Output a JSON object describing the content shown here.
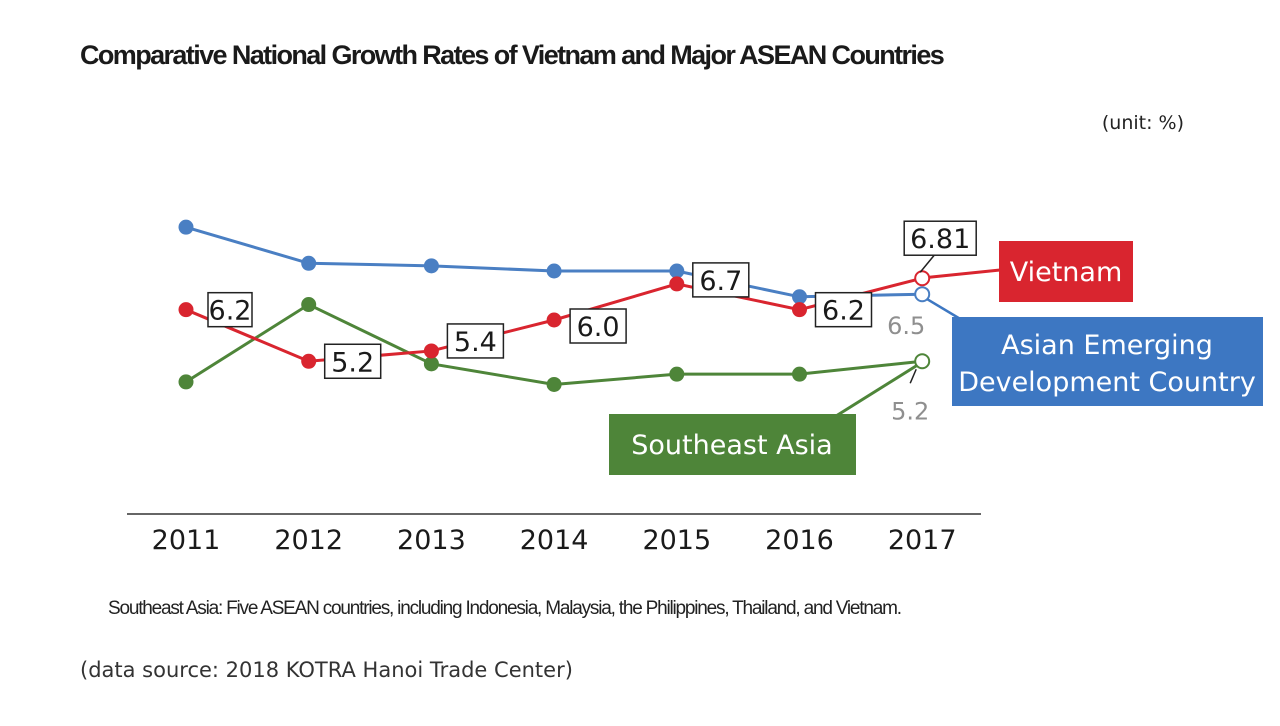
{
  "title": "Comparative National Growth Rates of Vietnam and Major ASEAN Countries",
  "unit": "(unit: %)",
  "note": "Southeast Asia: Five ASEAN countries, including Indonesia, Malaysia, the Philippines, Thailand, and Vietnam.",
  "source": "(data source: 2018 KOTRA Hanoi Trade Center)",
  "chart_data": {
    "type": "line",
    "title": "Comparative National Growth Rates of Vietnam and Major ASEAN Countries",
    "xlabel": "",
    "ylabel": "%",
    "ylim": [
      4.1,
      7.9
    ],
    "grid": false,
    "categories": [
      "2011",
      "2012",
      "2013",
      "2014",
      "2015",
      "2016",
      "2017"
    ],
    "series": [
      {
        "name": "Vietnam",
        "color": "#d9252f",
        "values": [
          6.2,
          5.2,
          5.4,
          6.0,
          6.7,
          6.2,
          6.81
        ],
        "labels": [
          "6.2",
          "5.2",
          "5.4",
          "6.0",
          "6.7",
          "6.2",
          "6.81"
        ],
        "last_open": true
      },
      {
        "name": "Asian Emerging Development Country",
        "color": "#4a7fc3",
        "values": [
          7.8,
          7.1,
          7.05,
          6.95,
          6.95,
          6.45,
          6.5
        ],
        "labels": [
          "",
          "",
          "",
          "",
          "",
          "",
          "6.5"
        ],
        "last_open": true
      },
      {
        "name": "Southeast Asia",
        "color": "#4e8539",
        "values": [
          4.8,
          6.3,
          5.15,
          4.75,
          4.95,
          4.95,
          5.2
        ],
        "labels": [
          "",
          "",
          "",
          "",
          "",
          "",
          "5.2"
        ],
        "last_open": true
      }
    ],
    "legend": [
      {
        "label": "Vietnam",
        "color": "#d9252f",
        "lines": [
          "Vietnam"
        ]
      },
      {
        "label": "Asian Emerging Development Country",
        "color": "#3d77c2",
        "lines": [
          "Asian Emerging",
          "Development Country"
        ]
      },
      {
        "label": "Southeast Asia",
        "color": "#4e8539",
        "lines": [
          "Southeast Asia"
        ]
      }
    ]
  }
}
